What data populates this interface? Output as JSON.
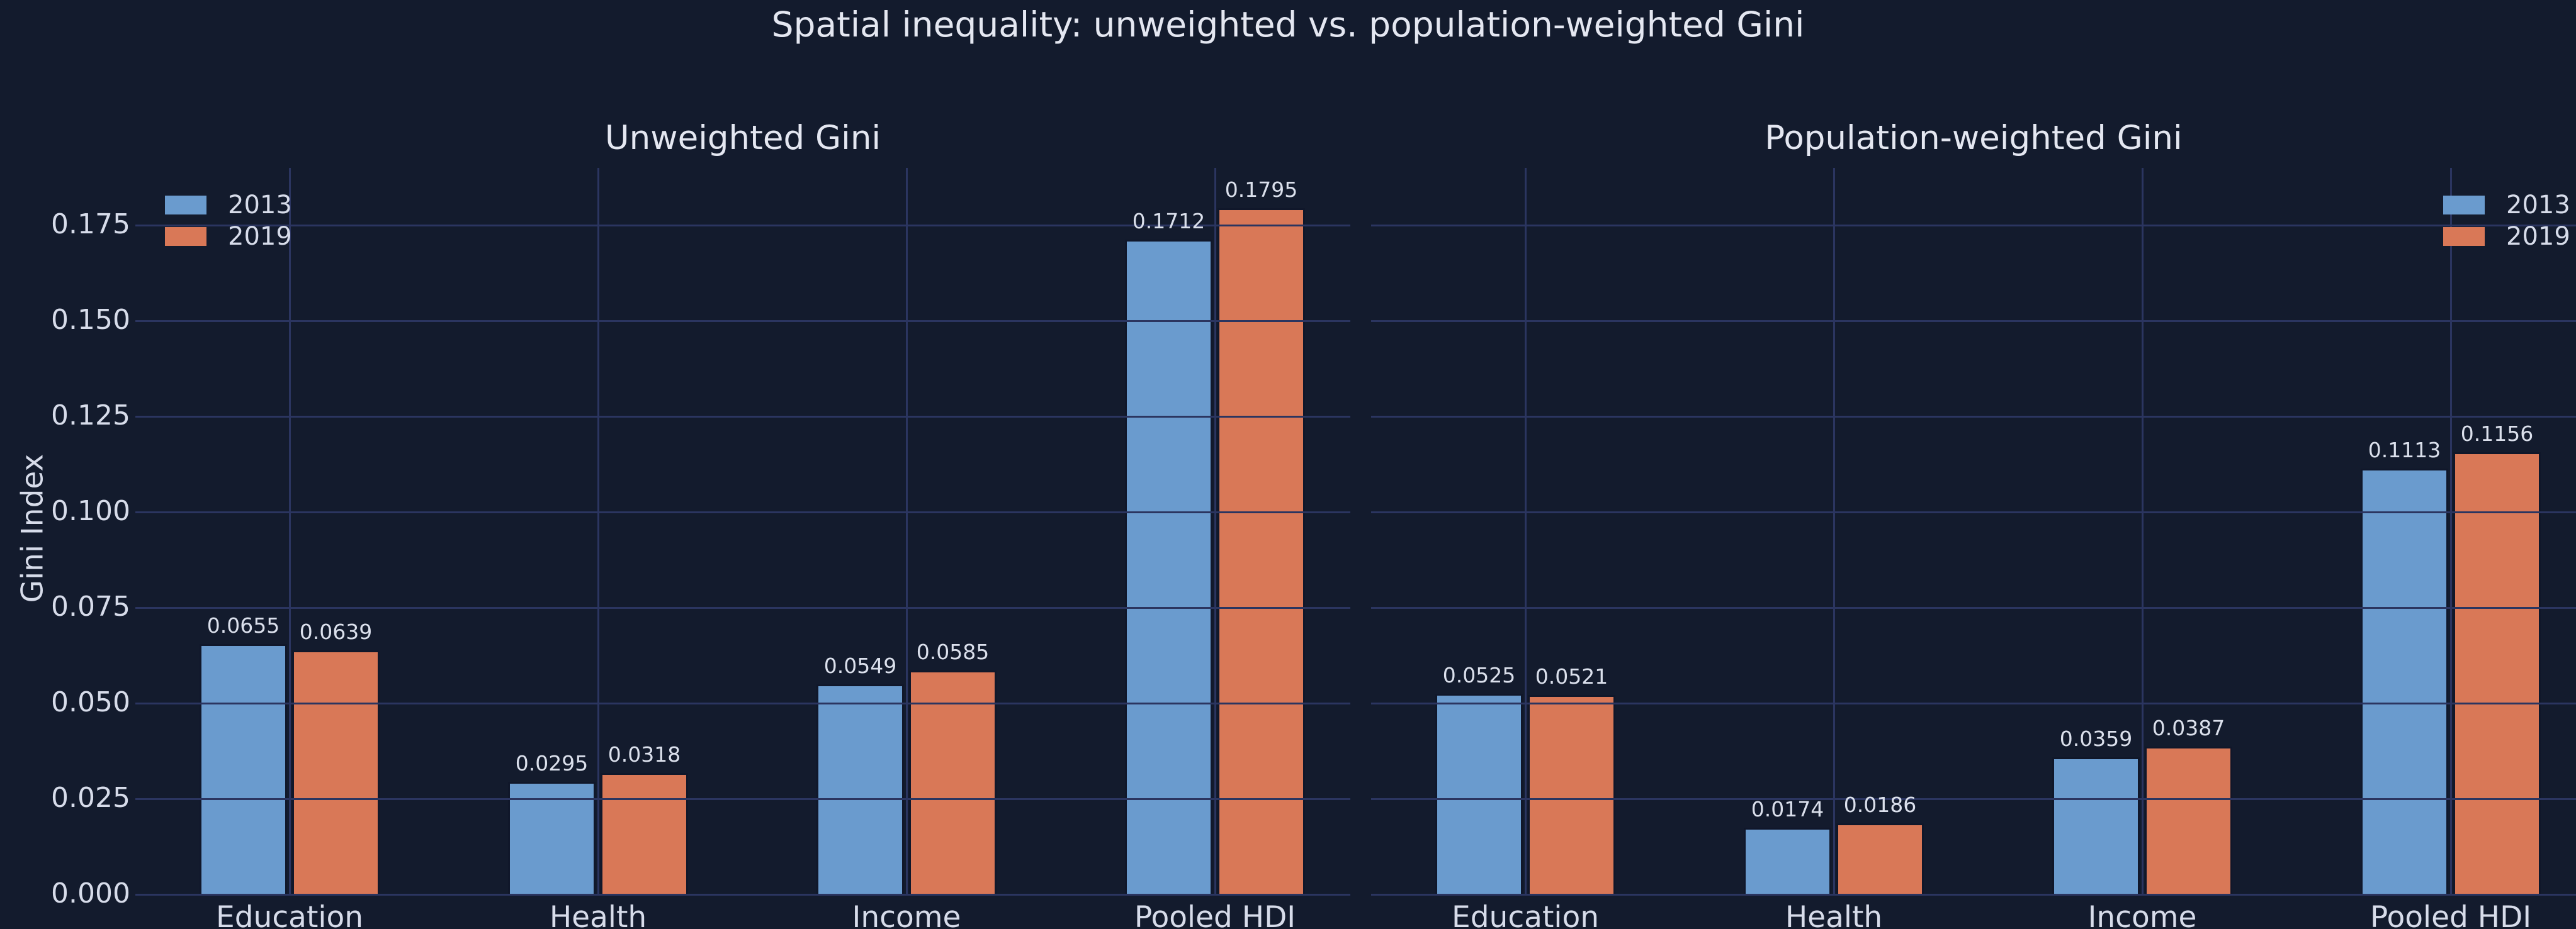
{
  "figure": {
    "suptitle": "Spatial inequality: unweighted vs. population-weighted Gini"
  },
  "chart_data": {
    "type": "bar",
    "suptitle": "Spatial inequality: unweighted vs. population-weighted Gini",
    "ylabel": "Gini Index",
    "ylim": [
      0,
      0.19
    ],
    "yticks": [
      0.0,
      0.025,
      0.05,
      0.075,
      0.1,
      0.125,
      0.15,
      0.175
    ],
    "ytick_labels": [
      "0.000",
      "0.025",
      "0.050",
      "0.075",
      "0.100",
      "0.125",
      "0.150",
      "0.175"
    ],
    "grid": "horizontal and vertical gridlines drawn over bars",
    "categories": [
      "Education",
      "Health",
      "Income",
      "Pooled HDI"
    ],
    "legend_labels": [
      "2013",
      "2019"
    ],
    "colors": {
      "series_2013": "#6a9bce",
      "series_2019": "#d97857",
      "background": "#131b2d",
      "gridline": "#2b3560",
      "text": "#d7dcea",
      "bar_edge": "#10172a"
    },
    "subplots": [
      {
        "title": "Unweighted Gini",
        "legend_position": "upper-left",
        "series": [
          {
            "name": "2013",
            "values": [
              0.0655,
              0.0295,
              0.0549,
              0.1712
            ],
            "value_labels": [
              "0.0655",
              "0.0295",
              "0.0549",
              "0.1712"
            ]
          },
          {
            "name": "2019",
            "values": [
              0.0639,
              0.0318,
              0.0585,
              0.1795
            ],
            "value_labels": [
              "0.0639",
              "0.0318",
              "0.0585",
              "0.1795"
            ]
          }
        ]
      },
      {
        "title": "Population-weighted Gini",
        "legend_position": "upper-right",
        "series": [
          {
            "name": "2013",
            "values": [
              0.0525,
              0.0174,
              0.0359,
              0.1113
            ],
            "value_labels": [
              "0.0525",
              "0.0174",
              "0.0359",
              "0.1113"
            ]
          },
          {
            "name": "2019",
            "values": [
              0.0521,
              0.0186,
              0.0387,
              0.1156
            ],
            "value_labels": [
              "0.0521",
              "0.0186",
              "0.0387",
              "0.1156"
            ]
          }
        ]
      }
    ]
  }
}
